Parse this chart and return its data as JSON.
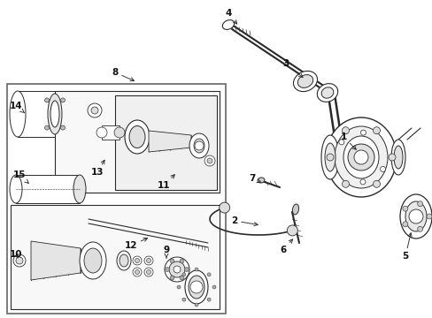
{
  "bg_color": "#ffffff",
  "line_color": "#2a2a2a",
  "fig_width": 4.89,
  "fig_height": 3.6,
  "dpi": 100,
  "label_fontsize": 7.5,
  "label_color": "#111111"
}
